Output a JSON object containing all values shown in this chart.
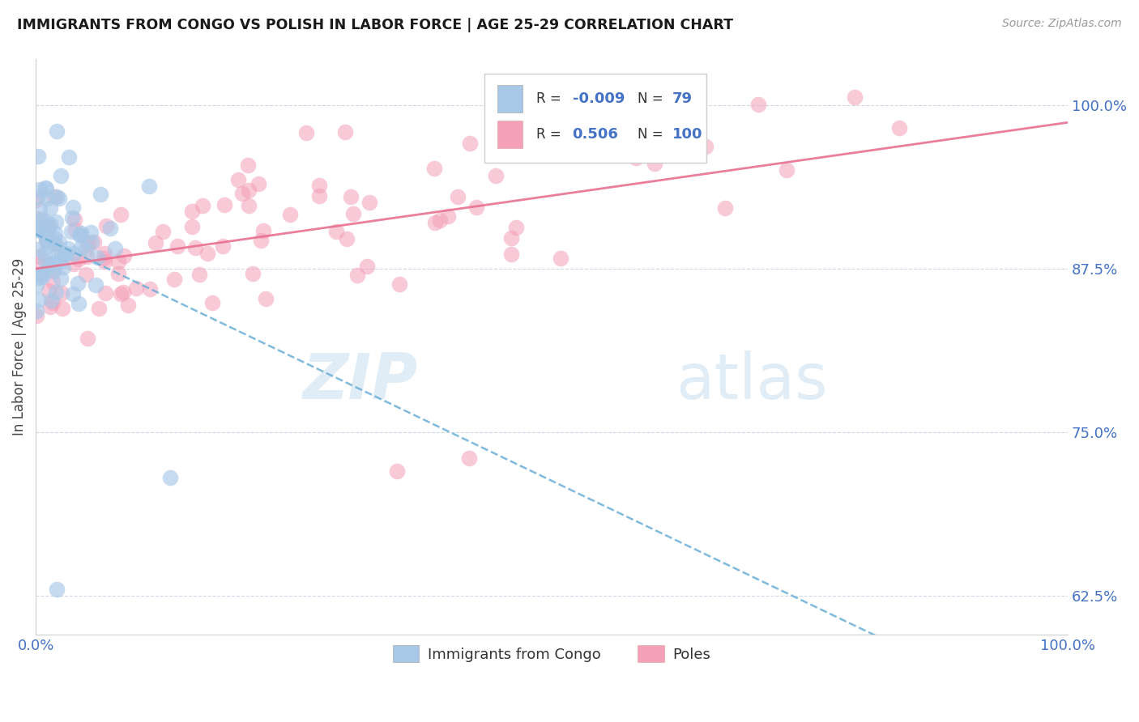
{
  "title": "IMMIGRANTS FROM CONGO VS POLISH IN LABOR FORCE | AGE 25-29 CORRELATION CHART",
  "source_text": "Source: ZipAtlas.com",
  "ylabel": "In Labor Force | Age 25-29",
  "xlim": [
    0.0,
    1.0
  ],
  "ylim": [
    0.595,
    1.035
  ],
  "yticks": [
    0.625,
    0.75,
    0.875,
    1.0
  ],
  "ytick_labels": [
    "62.5%",
    "75.0%",
    "87.5%",
    "100.0%"
  ],
  "xtick_labels": [
    "0.0%",
    "100.0%"
  ],
  "xticks": [
    0.0,
    1.0
  ],
  "watermark_zip": "ZIP",
  "watermark_atlas": "atlas",
  "legend_labels": [
    "Immigrants from Congo",
    "Poles"
  ],
  "color_congo": "#a8c8e8",
  "color_poles": "#f4a0b8",
  "trendline_congo_color": "#6aaed6",
  "trendline_poles_color": "#e87090",
  "congo_seed": 10,
  "poles_seed": 20,
  "n_congo": 79,
  "n_poles": 100,
  "r_congo": "-0.009",
  "r_poles": "0.506",
  "r_color": "#4472c4",
  "grid_color": "#d0d8e8",
  "spine_color": "#cccccc"
}
